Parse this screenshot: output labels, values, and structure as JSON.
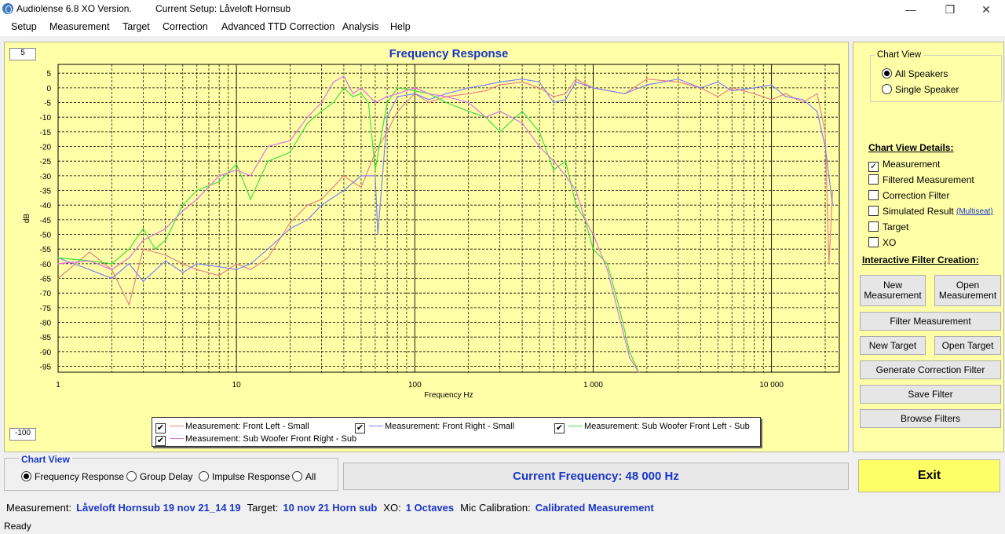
{
  "window": {
    "app_title": "Audiolense 6.8 XO Version.",
    "setup_title": "Current Setup: Låveloft Hornsub",
    "minimize": "—",
    "restore": "❐",
    "close": "✕"
  },
  "menu": [
    "Setup",
    "Measurement",
    "Target",
    "Correction",
    "Advanced TTD Correction",
    "Analysis",
    "Help"
  ],
  "main": {
    "top_box": "5",
    "bottom_box": "-100",
    "y_axis_label": "dB",
    "legend": [
      {
        "label": "Measurement: Front Left - Small",
        "color": "#f08080",
        "checked": "✔"
      },
      {
        "label": "Measurement: Front Right - Small",
        "color": "#8080f0",
        "checked": "✔"
      },
      {
        "label": "Measurement: Sub Woofer Front Left - Sub",
        "color": "#40e040",
        "checked": "✔"
      },
      {
        "label": "Measurement: Sub Woofer Front Right - Sub",
        "color": "#e070e0",
        "checked": "✔"
      }
    ]
  },
  "chart_data": {
    "type": "line",
    "title": "Frequency Response",
    "xlabel": "Frequency Hz",
    "ylabel": "dB",
    "x_scale": "log",
    "xlim": [
      1,
      24000
    ],
    "ylim": [
      -100,
      8
    ],
    "x_ticks": [
      1,
      10,
      100,
      1000,
      10000
    ],
    "x_tick_labels": [
      "1",
      "10",
      "100",
      "1 000",
      "10 000"
    ],
    "y_ticks": [
      5,
      0,
      -5,
      -10,
      -15,
      -20,
      -25,
      -30,
      -35,
      -40,
      -45,
      -50,
      -55,
      -60,
      -65,
      -70,
      -75,
      -80,
      -85,
      -90,
      -95
    ],
    "y_tick_labels": [
      "5",
      "0",
      "-5",
      "-10",
      "-15",
      "-20",
      "-25",
      "-30",
      "-35",
      "-40",
      "-45",
      "-50",
      "-55",
      "-60",
      "-65",
      "-70",
      "-75",
      "-80",
      "-85",
      "-90",
      "-95"
    ],
    "grid": true,
    "series": [
      {
        "name": "Measurement: Front Left - Small",
        "color": "#f08080",
        "x": [
          1,
          1.5,
          2,
          2.5,
          3,
          4,
          5,
          6,
          8,
          10,
          12,
          15,
          20,
          25,
          30,
          40,
          50,
          60,
          70,
          80,
          100,
          120,
          150,
          200,
          250,
          300,
          400,
          500,
          600,
          700,
          800,
          1000,
          1500,
          2000,
          3000,
          4000,
          5000,
          6000,
          8000,
          10000,
          12000,
          15000,
          18000,
          20000,
          21000,
          22000
        ],
        "y": [
          -65,
          -56,
          -62,
          -74,
          -55,
          -57,
          -60,
          -62,
          -64,
          -60,
          -62,
          -58,
          -46,
          -40,
          -38,
          -30,
          -34,
          -22,
          -15,
          -8,
          -2,
          -5,
          -3,
          -2,
          -1,
          1,
          2,
          0,
          -3,
          -2,
          3,
          0,
          -2,
          3,
          2,
          0,
          -3,
          0,
          -2,
          -4,
          -2,
          -5,
          -2,
          -15,
          -60,
          -35
        ]
      },
      {
        "name": "Measurement: Front Right - Small",
        "color": "#8080f0",
        "x": [
          1,
          1.5,
          2,
          2.5,
          3,
          4,
          5,
          6,
          8,
          10,
          12,
          15,
          20,
          25,
          30,
          40,
          50,
          60,
          62,
          70,
          80,
          100,
          120,
          150,
          200,
          250,
          300,
          400,
          500,
          600,
          700,
          800,
          1000,
          1500,
          2000,
          3000,
          4000,
          5000,
          6000,
          8000,
          10000,
          12000,
          15000,
          18000,
          20000,
          22000
        ],
        "y": [
          -58,
          -62,
          -65,
          -60,
          -66,
          -59,
          -63,
          -60,
          -61,
          -62,
          -60,
          -55,
          -48,
          -45,
          -40,
          -35,
          -30,
          -30,
          -50,
          -10,
          -3,
          -2,
          -4,
          -2,
          0,
          1,
          2,
          3,
          2,
          -5,
          -4,
          2,
          0,
          -2,
          1,
          3,
          0,
          2,
          -1,
          0,
          1,
          -3,
          -4,
          -8,
          -20,
          -40
        ]
      },
      {
        "name": "Measurement: Sub Woofer Front Left - Sub",
        "color": "#40e040",
        "x": [
          1,
          1.5,
          2,
          2.5,
          3,
          3.5,
          4,
          5,
          6,
          8,
          10,
          12,
          15,
          20,
          25,
          30,
          35,
          40,
          45,
          50,
          55,
          60,
          70,
          80,
          100,
          120,
          150,
          200,
          250,
          300,
          400,
          500,
          600,
          700,
          800,
          900,
          1000,
          1200,
          1400,
          1600,
          1800
        ],
        "y": [
          -58,
          -59,
          -60,
          -55,
          -48,
          -55,
          -52,
          -40,
          -35,
          -32,
          -26,
          -38,
          -25,
          -22,
          -12,
          -8,
          -5,
          0,
          -3,
          -2,
          -5,
          -28,
          -5,
          0,
          -1,
          -2,
          -5,
          -8,
          -10,
          -15,
          -8,
          -15,
          -28,
          -25,
          -40,
          -45,
          -55,
          -60,
          -75,
          -90,
          -98
        ]
      },
      {
        "name": "Measurement: Sub Woofer Front Right - Sub",
        "color": "#e070e0",
        "x": [
          1,
          1.5,
          2,
          2.5,
          3,
          4,
          5,
          6,
          8,
          10,
          12,
          15,
          20,
          25,
          30,
          35,
          40,
          45,
          50,
          60,
          70,
          80,
          100,
          120,
          150,
          200,
          250,
          300,
          400,
          500,
          600,
          700,
          800,
          900,
          1000,
          1200,
          1400,
          1600,
          1800
        ],
        "y": [
          -60,
          -59,
          -62,
          -58,
          -52,
          -48,
          -42,
          -38,
          -30,
          -28,
          -30,
          -20,
          -18,
          -10,
          -5,
          2,
          4,
          -2,
          0,
          -5,
          -3,
          -2,
          0,
          -2,
          -3,
          -5,
          -10,
          -8,
          -12,
          -20,
          -25,
          -30,
          -35,
          -45,
          -50,
          -62,
          -78,
          -92,
          -98
        ]
      }
    ]
  },
  "right": {
    "chart_view_group": "Chart View",
    "chart_view_options": [
      {
        "label": "All Speakers",
        "selected": true
      },
      {
        "label": "Single Speaker",
        "selected": false
      }
    ],
    "details_header": "Chart View Details:",
    "details": [
      {
        "label": "Measurement",
        "checked": true
      },
      {
        "label": "Filtered Measurement",
        "checked": false
      },
      {
        "label": "Correction Filter",
        "checked": false
      },
      {
        "label": "Simulated Result",
        "checked": false
      },
      {
        "label": "Target",
        "checked": false
      },
      {
        "label": "XO",
        "checked": false
      }
    ],
    "multiseat_link": "(Multiseat)",
    "check_mark": "✓",
    "filter_header": "Interactive Filter Creation:",
    "new_measurement": "New Measurement",
    "open_measurement": "Open Measurement",
    "filter_measurement": "Filter Measurement",
    "new_target": "New Target",
    "open_target": "Open Target",
    "generate_filter": "Generate Correction Filter",
    "save_filter": "Save Filter",
    "browse_filters": "Browse Filters"
  },
  "bottom": {
    "chart_view_group": "Chart View",
    "options": [
      {
        "label": "Frequency Response",
        "selected": true
      },
      {
        "label": "Group Delay",
        "selected": false
      },
      {
        "label": "Impulse Response",
        "selected": false
      },
      {
        "label": "All",
        "selected": false
      }
    ],
    "current_frequency": "Current Frequency: 48 000 Hz",
    "exit": "Exit"
  },
  "status": {
    "measurement_label": "Measurement:",
    "measurement_value": "Låveloft Hornsub 19 nov 21_14 19",
    "target_label": "Target:",
    "target_value": "10 nov 21 Horn sub",
    "xo_label": "XO:",
    "xo_value": "1 Octaves",
    "mic_label": "Mic Calibration:",
    "mic_value": "Calibrated Measurement",
    "ready": "Ready"
  }
}
